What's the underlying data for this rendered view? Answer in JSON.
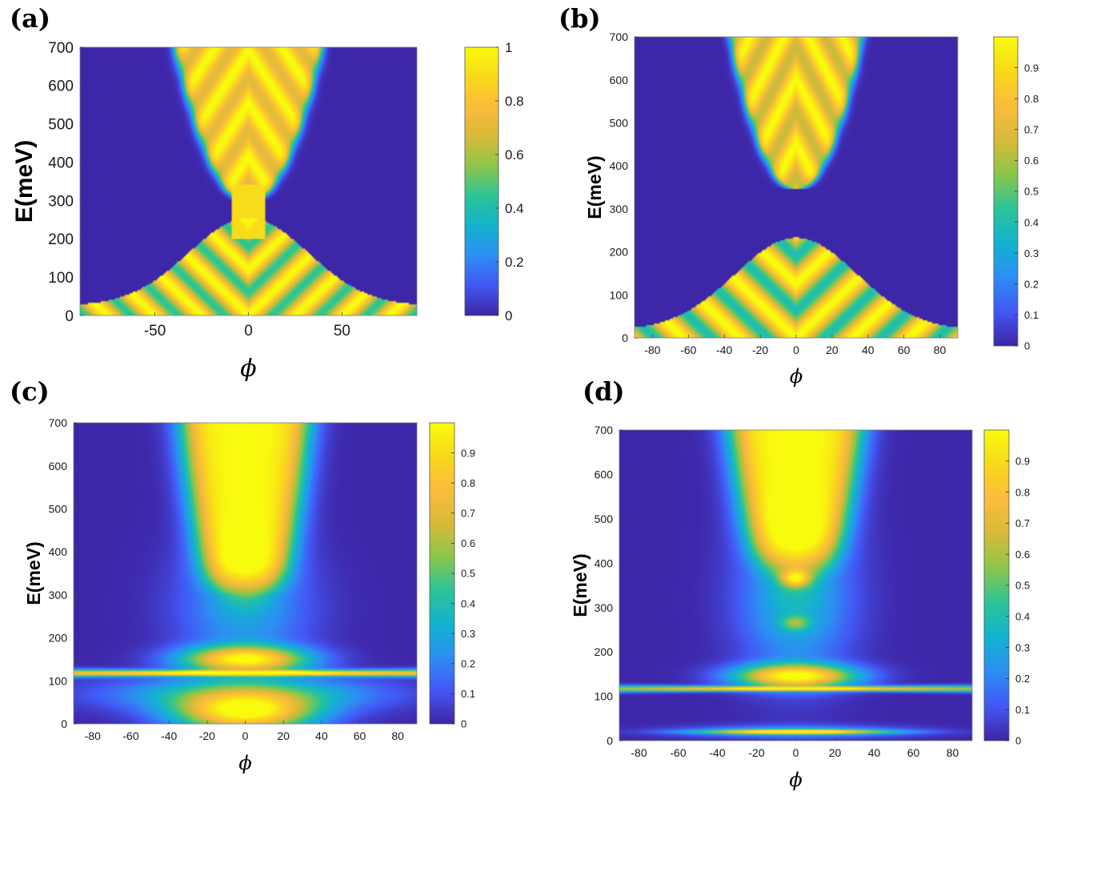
{
  "colors": {
    "colormap": [
      "#3e26a8",
      "#4358f5",
      "#2d8ff3",
      "#13b2cf",
      "#2cc497",
      "#8bc64b",
      "#d9ba39",
      "#fbbc3d",
      "#f8d91c",
      "#f9fb0e"
    ],
    "background": "#3a2ea0"
  },
  "chart_data": [
    {
      "panel": "(a)",
      "type": "heatmap",
      "xlabel": "ϕ",
      "ylabel": "E(meV)",
      "xlim": [
        -90,
        90
      ],
      "ylim": [
        0,
        700
      ],
      "xticks": [
        "-50",
        "0",
        "50"
      ],
      "xtick_values": [
        -50,
        0,
        50
      ],
      "yticks": [
        "0",
        "100",
        "200",
        "300",
        "400",
        "500",
        "600",
        "700"
      ],
      "colorbar": {
        "range": [
          0,
          1
        ],
        "ticks": [
          "0",
          "0.2",
          "0.4",
          "0.6",
          "0.8",
          "1"
        ],
        "tick_values": [
          0,
          0.2,
          0.4,
          0.6,
          0.8,
          1.0
        ]
      },
      "features": {
        "upper_band_min": 300,
        "lower_band_max": 230,
        "gap": false,
        "sharp_fringes": true
      }
    },
    {
      "panel": "(b)",
      "type": "heatmap",
      "xlabel": "ϕ",
      "ylabel": "E(meV)",
      "xlim": [
        -90,
        90
      ],
      "ylim": [
        0,
        700
      ],
      "xticks": [
        "-80",
        "-60",
        "-40",
        "-20",
        "0",
        "20",
        "40",
        "60",
        "80"
      ],
      "xtick_values": [
        -80,
        -60,
        -40,
        -20,
        0,
        20,
        40,
        60,
        80
      ],
      "yticks": [
        "0",
        "100",
        "200",
        "300",
        "400",
        "500",
        "600",
        "700"
      ],
      "colorbar": {
        "range": [
          0,
          1
        ],
        "ticks": [
          "0",
          "0.1",
          "0.2",
          "0.3",
          "0.4",
          "0.5",
          "0.6",
          "0.7",
          "0.8",
          "0.9"
        ],
        "tick_values": [
          0,
          0.1,
          0.2,
          0.3,
          0.4,
          0.5,
          0.6,
          0.7,
          0.8,
          0.9
        ]
      },
      "features": {
        "upper_band_min": 345,
        "lower_band_max": 220,
        "gap": true,
        "sharp_fringes": true
      }
    },
    {
      "panel": "(c)",
      "type": "heatmap",
      "xlabel": "ϕ",
      "ylabel": "E(meV)",
      "xlim": [
        -90,
        90
      ],
      "ylim": [
        0,
        700
      ],
      "xticks": [
        "-80",
        "-60",
        "-40",
        "-20",
        "0",
        "20",
        "40",
        "60",
        "80"
      ],
      "xtick_values": [
        -80,
        -60,
        -40,
        -20,
        0,
        20,
        40,
        60,
        80
      ],
      "yticks": [
        "0",
        "100",
        "200",
        "300",
        "400",
        "500",
        "600",
        "700"
      ],
      "colorbar": {
        "range": [
          0,
          1
        ],
        "ticks": [
          "0",
          "0.1",
          "0.2",
          "0.3",
          "0.4",
          "0.5",
          "0.6",
          "0.7",
          "0.8",
          "0.9"
        ],
        "tick_values": [
          0,
          0.1,
          0.2,
          0.3,
          0.4,
          0.5,
          0.6,
          0.7,
          0.8,
          0.9
        ]
      },
      "features": {
        "upper_band_min": 310,
        "resonance_line": 115,
        "gap": false,
        "sharp_fringes": false
      }
    },
    {
      "panel": "(d)",
      "type": "heatmap",
      "xlabel": "ϕ",
      "ylabel": "E(meV)",
      "xlim": [
        -90,
        90
      ],
      "ylim": [
        0,
        700
      ],
      "xticks": [
        "-80",
        "-60",
        "-40",
        "-20",
        "0",
        "20",
        "40",
        "60",
        "80"
      ],
      "xtick_values": [
        -80,
        -60,
        -40,
        -20,
        0,
        20,
        40,
        60,
        80
      ],
      "yticks": [
        "0",
        "100",
        "200",
        "300",
        "400",
        "500",
        "600",
        "700"
      ],
      "colorbar": {
        "range": [
          0,
          1
        ],
        "ticks": [
          "0",
          "0.1",
          "0.2",
          "0.3",
          "0.4",
          "0.5",
          "0.6",
          "0.7",
          "0.8",
          "0.9"
        ],
        "tick_values": [
          0,
          0.1,
          0.2,
          0.3,
          0.4,
          0.5,
          0.6,
          0.7,
          0.8,
          0.9
        ]
      },
      "features": {
        "upper_band_min": 380,
        "resonance_line": 115,
        "bottom_line": 20,
        "gap": false,
        "sharp_fringes": false
      }
    }
  ]
}
